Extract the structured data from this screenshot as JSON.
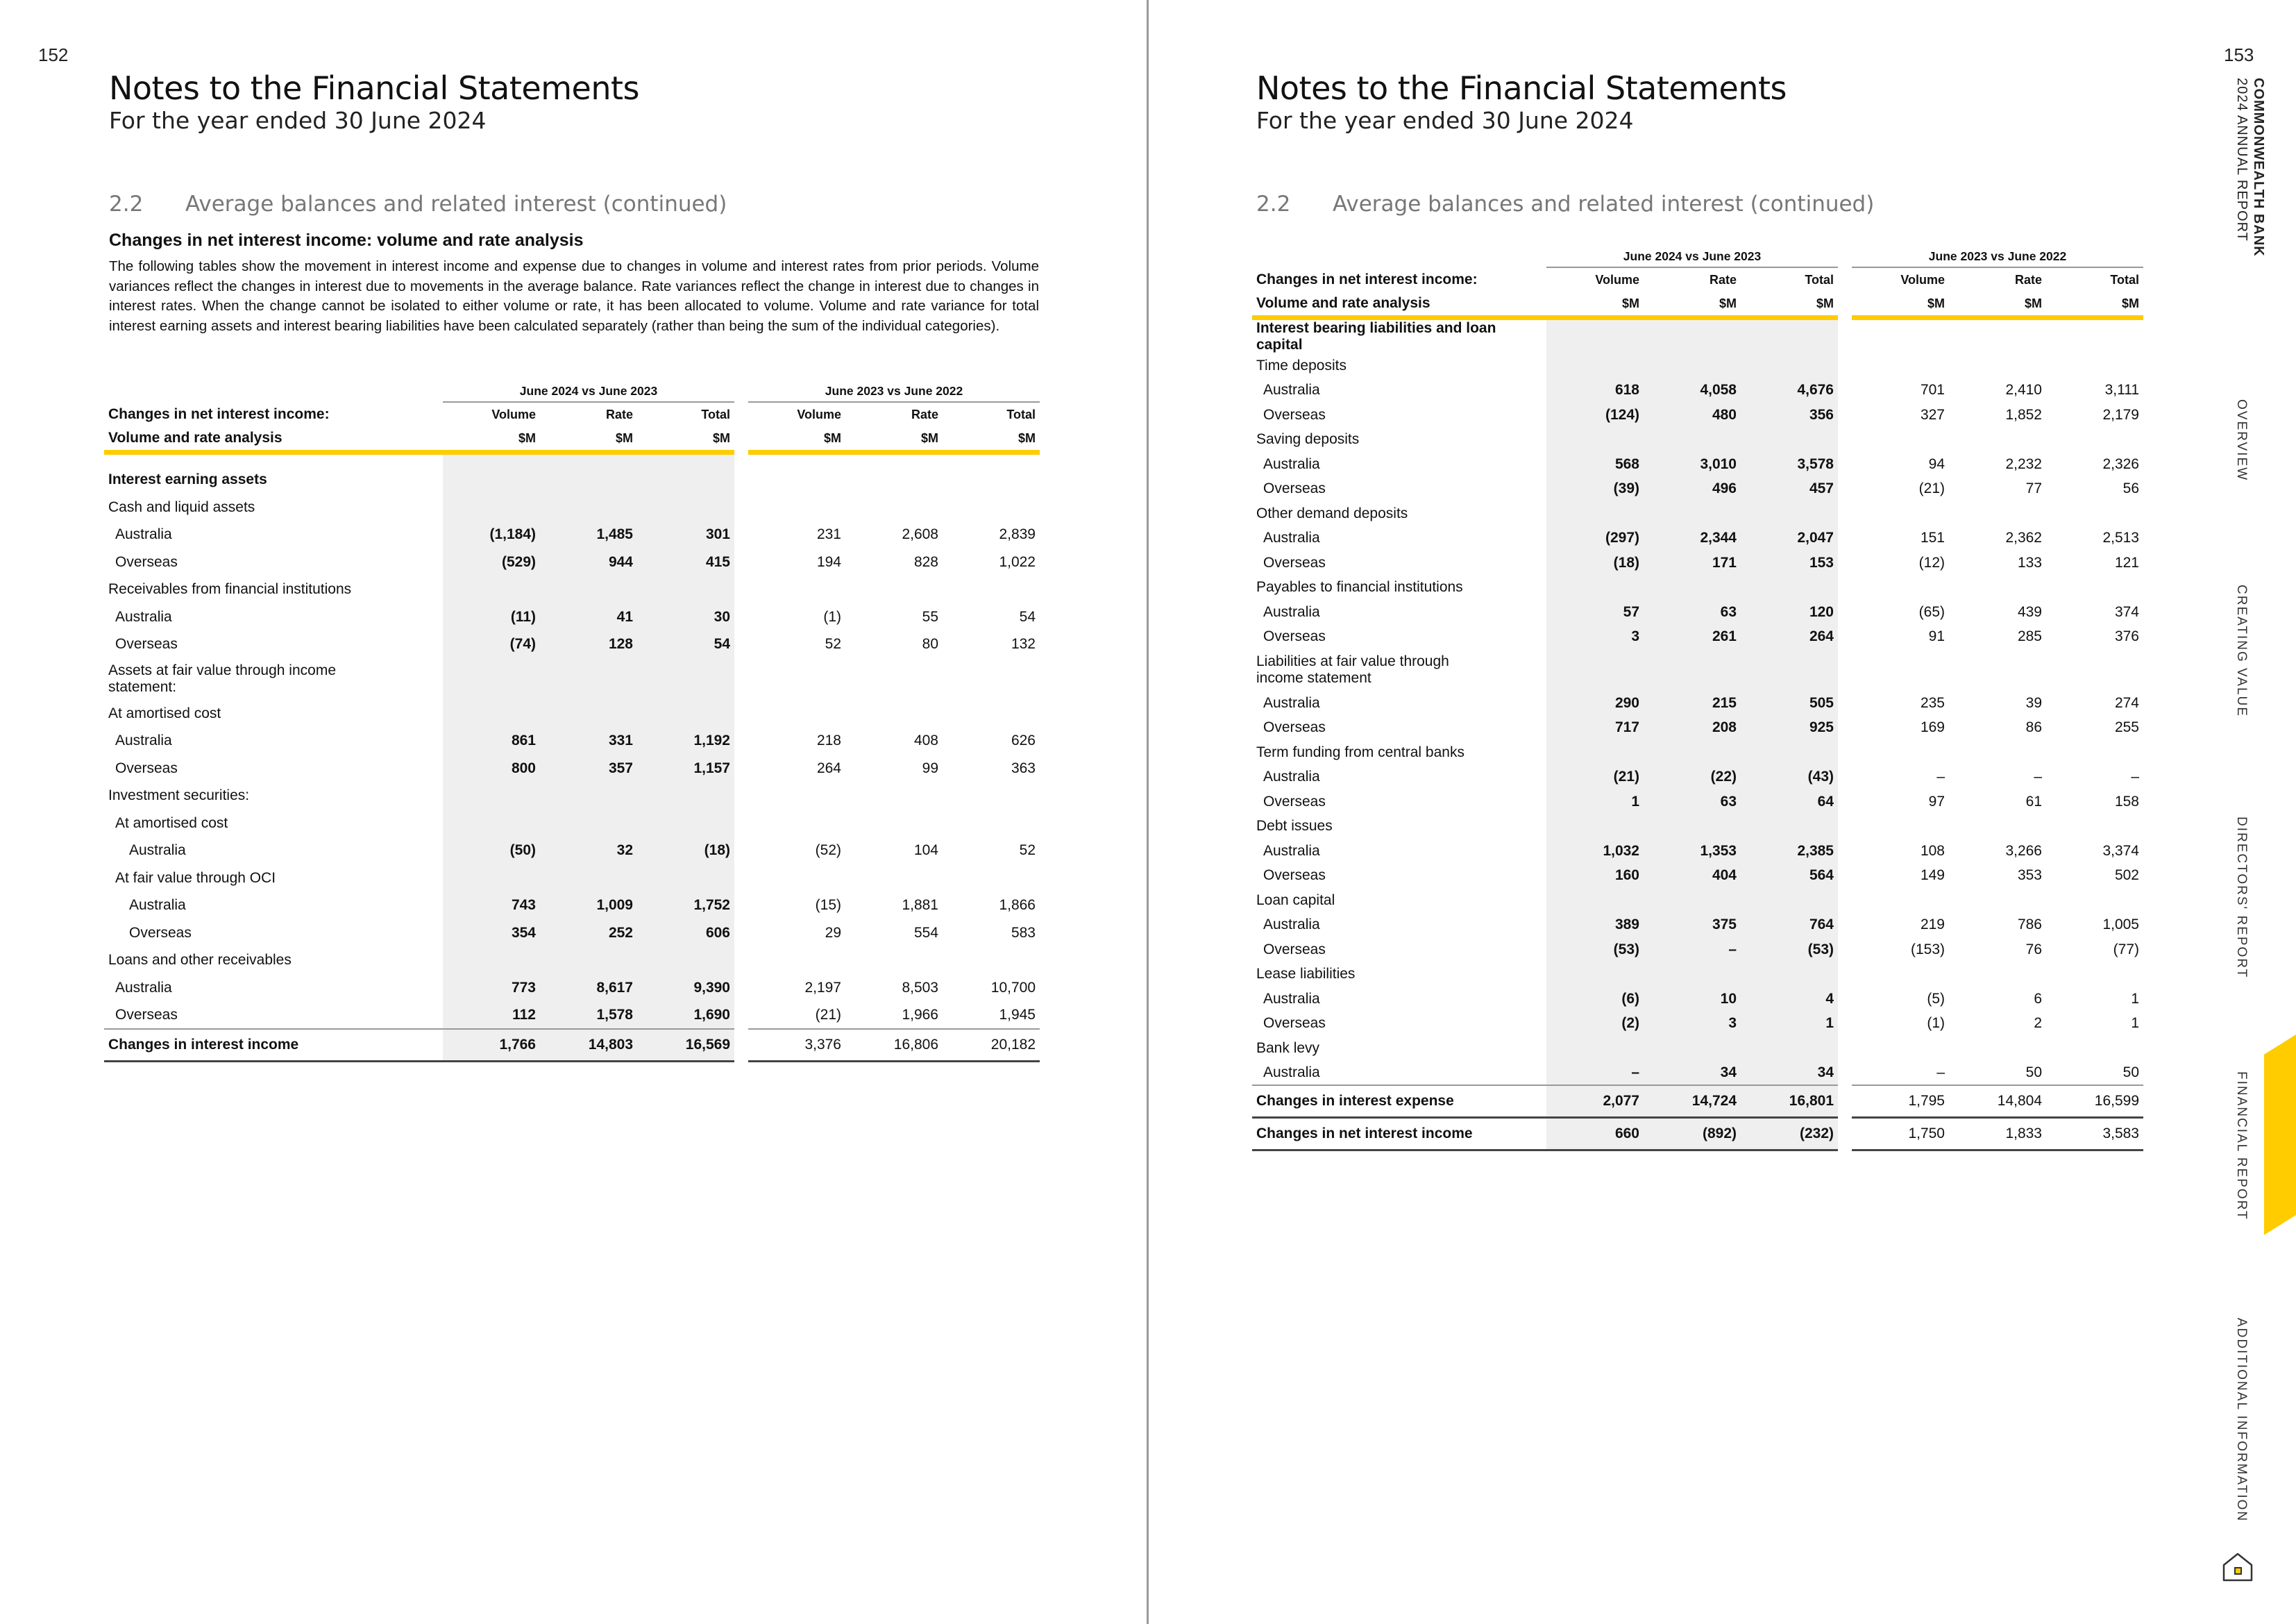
{
  "left_page": {
    "page_number": "152",
    "title": "Notes to the Financial Statements",
    "subtitle": "For the year ended 30 June 2024",
    "section_number": "2.2",
    "section_title": "Average balances and related interest (continued)",
    "sub_heading": "Changes in net interest income: volume and rate analysis",
    "intro": "The following tables show the movement in interest income and expense due to changes in volume and interest rates from prior periods. Volume variances reflect the changes in interest due to movements in the average balance. Rate variances reflect the change in interest due to changes in interest rates. When the change cannot be isolated to either volume or rate, it has been allocated to volume. Volume and rate variance for total interest earning assets and interest bearing liabilities have been calculated separately (rather than being the sum of the individual categories).",
    "table": {
      "group1": "June 2024 vs June 2023",
      "group2": "June 2023 vs June 2022",
      "header_label1": "Changes in net interest income:",
      "header_label2": "Volume and rate analysis",
      "cols": [
        "Volume",
        "Rate",
        "Total",
        "Volume",
        "Rate",
        "Total"
      ],
      "units": [
        "$M",
        "$M",
        "$M",
        "$M",
        "$M",
        "$M"
      ],
      "rows": [
        {
          "label": "Interest earning assets",
          "bold": true
        },
        {
          "label": "Cash and liquid assets"
        },
        {
          "label": "Australia",
          "lvl": 1,
          "v": [
            "(1,184)",
            "1,485",
            "301",
            "231",
            "2,608",
            "2,839"
          ]
        },
        {
          "label": "Overseas",
          "lvl": 1,
          "v": [
            "(529)",
            "944",
            "415",
            "194",
            "828",
            "1,022"
          ]
        },
        {
          "label": "Receivables from financial institutions"
        },
        {
          "label": "Australia",
          "lvl": 1,
          "v": [
            "(11)",
            "41",
            "30",
            "(1)",
            "55",
            "54"
          ]
        },
        {
          "label": "Overseas",
          "lvl": 1,
          "v": [
            "(74)",
            "128",
            "54",
            "52",
            "80",
            "132"
          ]
        },
        {
          "label": "Assets at fair value through income statement:",
          "tall": true
        },
        {
          "label": "At amortised cost"
        },
        {
          "label": "Australia",
          "lvl": 1,
          "v": [
            "861",
            "331",
            "1,192",
            "218",
            "408",
            "626"
          ]
        },
        {
          "label": "Overseas",
          "lvl": 1,
          "v": [
            "800",
            "357",
            "1,157",
            "264",
            "99",
            "363"
          ]
        },
        {
          "label": "Investment securities:"
        },
        {
          "label": "At amortised cost",
          "lvl": 1
        },
        {
          "label": "Australia",
          "lvl": 2,
          "v": [
            "(50)",
            "32",
            "(18)",
            "(52)",
            "104",
            "52"
          ]
        },
        {
          "label": "At fair value through OCI",
          "lvl": 1
        },
        {
          "label": "Australia",
          "lvl": 2,
          "v": [
            "743",
            "1,009",
            "1,752",
            "(15)",
            "1,881",
            "1,866"
          ]
        },
        {
          "label": "Overseas",
          "lvl": 2,
          "v": [
            "354",
            "252",
            "606",
            "29",
            "554",
            "583"
          ]
        },
        {
          "label": "Loans and other receivables"
        },
        {
          "label": "Australia",
          "lvl": 1,
          "v": [
            "773",
            "8,617",
            "9,390",
            "2,197",
            "8,503",
            "10,700"
          ]
        },
        {
          "label": "Overseas",
          "lvl": 1,
          "v": [
            "112",
            "1,578",
            "1,690",
            "(21)",
            "1,966",
            "1,945"
          ]
        },
        {
          "label": "Changes in interest income",
          "total": true,
          "v": [
            "1,766",
            "14,803",
            "16,569",
            "3,376",
            "16,806",
            "20,182"
          ]
        }
      ]
    }
  },
  "right_page": {
    "page_number": "153",
    "title": "Notes to the Financial Statements",
    "subtitle": "For the year ended 30 June 2024",
    "section_number": "2.2",
    "section_title": "Average balances and related interest (continued)",
    "table": {
      "group1": "June 2024 vs June 2023",
      "group2": "June 2023 vs June 2022",
      "header_label1": "Changes in net interest income:",
      "header_label2": "Volume and rate analysis",
      "cols": [
        "Volume",
        "Rate",
        "Total",
        "Volume",
        "Rate",
        "Total"
      ],
      "units": [
        "$M",
        "$M",
        "$M",
        "$M",
        "$M",
        "$M"
      ],
      "rows": [
        {
          "label": "Interest bearing liabilities and loan capital",
          "bold": true
        },
        {
          "label": "Time deposits"
        },
        {
          "label": "Australia",
          "lvl": 1,
          "v": [
            "618",
            "4,058",
            "4,676",
            "701",
            "2,410",
            "3,111"
          ]
        },
        {
          "label": "Overseas",
          "lvl": 1,
          "v": [
            "(124)",
            "480",
            "356",
            "327",
            "1,852",
            "2,179"
          ]
        },
        {
          "label": "Saving deposits"
        },
        {
          "label": "Australia",
          "lvl": 1,
          "v": [
            "568",
            "3,010",
            "3,578",
            "94",
            "2,232",
            "2,326"
          ]
        },
        {
          "label": "Overseas",
          "lvl": 1,
          "v": [
            "(39)",
            "496",
            "457",
            "(21)",
            "77",
            "56"
          ]
        },
        {
          "label": "Other demand deposits"
        },
        {
          "label": "Australia",
          "lvl": 1,
          "v": [
            "(297)",
            "2,344",
            "2,047",
            "151",
            "2,362",
            "2,513"
          ]
        },
        {
          "label": "Overseas",
          "lvl": 1,
          "v": [
            "(18)",
            "171",
            "153",
            "(12)",
            "133",
            "121"
          ]
        },
        {
          "label": "Payables to financial institutions"
        },
        {
          "label": "Australia",
          "lvl": 1,
          "v": [
            "57",
            "63",
            "120",
            "(65)",
            "439",
            "374"
          ]
        },
        {
          "label": "Overseas",
          "lvl": 1,
          "v": [
            "3",
            "261",
            "264",
            "91",
            "285",
            "376"
          ]
        },
        {
          "label": "Liabilities at fair value through income statement",
          "tall": true
        },
        {
          "label": "Australia",
          "lvl": 1,
          "v": [
            "290",
            "215",
            "505",
            "235",
            "39",
            "274"
          ]
        },
        {
          "label": "Overseas",
          "lvl": 1,
          "v": [
            "717",
            "208",
            "925",
            "169",
            "86",
            "255"
          ]
        },
        {
          "label": "Term funding from central banks"
        },
        {
          "label": "Australia",
          "lvl": 1,
          "v": [
            "(21)",
            "(22)",
            "(43)",
            "–",
            "–",
            "–"
          ]
        },
        {
          "label": "Overseas",
          "lvl": 1,
          "v": [
            "1",
            "63",
            "64",
            "97",
            "61",
            "158"
          ]
        },
        {
          "label": "Debt issues"
        },
        {
          "label": "Australia",
          "lvl": 1,
          "v": [
            "1,032",
            "1,353",
            "2,385",
            "108",
            "3,266",
            "3,374"
          ]
        },
        {
          "label": "Overseas",
          "lvl": 1,
          "v": [
            "160",
            "404",
            "564",
            "149",
            "353",
            "502"
          ]
        },
        {
          "label": "Loan capital"
        },
        {
          "label": "Australia",
          "lvl": 1,
          "v": [
            "389",
            "375",
            "764",
            "219",
            "786",
            "1,005"
          ]
        },
        {
          "label": "Overseas",
          "lvl": 1,
          "v": [
            "(53)",
            "–",
            "(53)",
            "(153)",
            "76",
            "(77)"
          ]
        },
        {
          "label": "Lease liabilities"
        },
        {
          "label": "Australia",
          "lvl": 1,
          "v": [
            "(6)",
            "10",
            "4",
            "(5)",
            "6",
            "1"
          ]
        },
        {
          "label": "Overseas",
          "lvl": 1,
          "v": [
            "(2)",
            "3",
            "1",
            "(1)",
            "2",
            "1"
          ]
        },
        {
          "label": "Bank levy"
        },
        {
          "label": "Australia",
          "lvl": 1,
          "v": [
            "–",
            "34",
            "34",
            "–",
            "50",
            "50"
          ]
        },
        {
          "label": "Changes in interest expense",
          "total": true,
          "v": [
            "2,077",
            "14,724",
            "16,801",
            "1,795",
            "14,804",
            "16,599"
          ]
        },
        {
          "label": "Changes in net interest income",
          "total": true,
          "v": [
            "660",
            "(892)",
            "(232)",
            "1,750",
            "1,833",
            "3,583"
          ]
        }
      ]
    }
  },
  "side_nav": {
    "brand_line1": "COMMONWEALTH BANK",
    "brand_line2": "2024 ANNUAL REPORT",
    "items": [
      {
        "label": "OVERVIEW"
      },
      {
        "label": "CREATING VALUE"
      },
      {
        "label": "DIRECTORS' REPORT"
      },
      {
        "label": "FINANCIAL REPORT",
        "active": true
      },
      {
        "label": "ADDITIONAL INFORMATION"
      }
    ],
    "home_icon": "home-icon"
  },
  "colors": {
    "accent": "#FFCC00",
    "shade": "#efefef"
  }
}
